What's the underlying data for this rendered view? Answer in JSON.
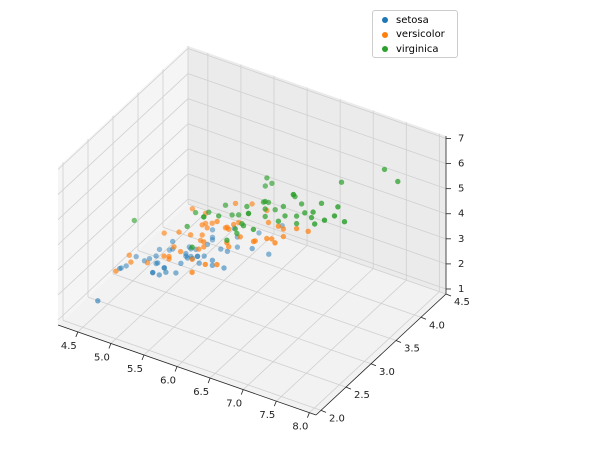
{
  "chart_data": {
    "type": "scatter",
    "title": "",
    "xlabel": "",
    "ylabel": "",
    "zlabel": "",
    "xlim": [
      4.2,
      8.1
    ],
    "ylim": [
      1.9,
      4.5
    ],
    "zlim": [
      0.8,
      7.1
    ],
    "x_ticks": [
      "4.5",
      "5.0",
      "5.5",
      "6.0",
      "6.5",
      "7.0",
      "7.5",
      "8.0"
    ],
    "y_ticks": [
      "2.0",
      "2.5",
      "3.0",
      "3.5",
      "4.0",
      "4.5"
    ],
    "z_ticks": [
      "1",
      "2",
      "3",
      "4",
      "5",
      "6",
      "7"
    ],
    "grid": true,
    "legend_position": "top-right",
    "series": [
      {
        "name": "setosa",
        "color": "#1f77b4",
        "points": [
          [
            5.1,
            3.5,
            1.4
          ],
          [
            4.9,
            3.0,
            1.4
          ],
          [
            4.7,
            3.2,
            1.3
          ],
          [
            4.6,
            3.1,
            1.5
          ],
          [
            5.0,
            3.6,
            1.4
          ],
          [
            5.4,
            3.9,
            1.7
          ],
          [
            4.6,
            3.4,
            1.4
          ],
          [
            5.0,
            3.4,
            1.5
          ],
          [
            4.4,
            2.9,
            1.4
          ],
          [
            4.9,
            3.1,
            1.5
          ],
          [
            5.4,
            3.7,
            1.5
          ],
          [
            4.8,
            3.4,
            1.6
          ],
          [
            4.8,
            3.0,
            1.4
          ],
          [
            4.3,
            3.0,
            1.1
          ],
          [
            5.8,
            4.0,
            1.2
          ],
          [
            5.7,
            4.4,
            1.5
          ],
          [
            5.4,
            3.9,
            1.3
          ],
          [
            5.1,
            3.5,
            1.4
          ],
          [
            5.7,
            3.8,
            1.7
          ],
          [
            5.1,
            3.8,
            1.5
          ],
          [
            5.4,
            3.4,
            1.7
          ],
          [
            5.1,
            3.7,
            1.5
          ],
          [
            4.6,
            3.6,
            1.0
          ],
          [
            5.1,
            3.3,
            1.7
          ],
          [
            4.8,
            3.4,
            1.9
          ],
          [
            5.0,
            3.0,
            1.6
          ],
          [
            5.0,
            3.4,
            1.6
          ],
          [
            5.2,
            3.5,
            1.5
          ],
          [
            5.2,
            3.4,
            1.4
          ],
          [
            4.7,
            3.2,
            1.6
          ],
          [
            4.8,
            3.1,
            1.6
          ],
          [
            5.4,
            3.4,
            1.5
          ],
          [
            5.2,
            4.1,
            1.5
          ],
          [
            5.5,
            4.2,
            1.4
          ],
          [
            4.9,
            3.1,
            1.5
          ],
          [
            5.0,
            3.2,
            1.2
          ],
          [
            5.5,
            3.5,
            1.3
          ],
          [
            4.9,
            3.6,
            1.4
          ],
          [
            4.4,
            3.0,
            1.3
          ],
          [
            5.1,
            3.4,
            1.5
          ],
          [
            5.0,
            3.5,
            1.3
          ],
          [
            4.5,
            2.3,
            1.3
          ],
          [
            4.4,
            3.2,
            1.3
          ],
          [
            5.0,
            3.5,
            1.6
          ],
          [
            5.1,
            3.8,
            1.9
          ],
          [
            4.8,
            3.0,
            1.4
          ],
          [
            5.1,
            3.8,
            1.6
          ],
          [
            4.6,
            3.2,
            1.4
          ],
          [
            5.3,
            3.7,
            1.5
          ],
          [
            5.0,
            3.3,
            1.4
          ]
        ]
      },
      {
        "name": "versicolor",
        "color": "#ff7f0e",
        "points": [
          [
            7.0,
            3.2,
            4.7
          ],
          [
            6.4,
            3.2,
            4.5
          ],
          [
            6.9,
            3.1,
            4.9
          ],
          [
            5.5,
            2.3,
            4.0
          ],
          [
            6.5,
            2.8,
            4.6
          ],
          [
            5.7,
            2.8,
            4.5
          ],
          [
            6.3,
            3.3,
            4.7
          ],
          [
            4.9,
            2.4,
            3.3
          ],
          [
            6.6,
            2.9,
            4.6
          ],
          [
            5.2,
            2.7,
            3.9
          ],
          [
            5.0,
            2.0,
            3.5
          ],
          [
            5.9,
            3.0,
            4.2
          ],
          [
            6.0,
            2.2,
            4.0
          ],
          [
            6.1,
            2.9,
            4.7
          ],
          [
            5.6,
            2.9,
            3.6
          ],
          [
            6.7,
            3.1,
            4.4
          ],
          [
            5.6,
            3.0,
            4.5
          ],
          [
            5.8,
            2.7,
            4.1
          ],
          [
            6.2,
            2.2,
            4.5
          ],
          [
            5.6,
            2.5,
            3.9
          ],
          [
            5.9,
            3.2,
            4.8
          ],
          [
            6.1,
            2.8,
            4.0
          ],
          [
            6.3,
            2.5,
            4.9
          ],
          [
            6.1,
            2.8,
            4.7
          ],
          [
            6.4,
            2.9,
            4.3
          ],
          [
            6.6,
            3.0,
            4.4
          ],
          [
            6.8,
            2.8,
            4.8
          ],
          [
            6.7,
            3.0,
            5.0
          ],
          [
            6.0,
            2.9,
            4.5
          ],
          [
            5.7,
            2.6,
            3.5
          ],
          [
            5.5,
            2.4,
            3.8
          ],
          [
            5.5,
            2.4,
            3.7
          ],
          [
            5.8,
            2.7,
            3.9
          ],
          [
            6.0,
            2.7,
            5.1
          ],
          [
            5.4,
            3.0,
            4.5
          ],
          [
            6.0,
            3.4,
            4.5
          ],
          [
            6.7,
            3.1,
            4.7
          ],
          [
            6.3,
            2.3,
            4.4
          ],
          [
            5.6,
            3.0,
            4.1
          ],
          [
            5.5,
            2.5,
            4.0
          ],
          [
            5.5,
            2.6,
            4.4
          ],
          [
            6.1,
            3.0,
            4.6
          ],
          [
            5.8,
            2.6,
            4.0
          ],
          [
            5.0,
            2.3,
            3.3
          ],
          [
            5.6,
            2.7,
            4.2
          ],
          [
            5.7,
            3.0,
            4.2
          ],
          [
            5.7,
            2.9,
            4.2
          ],
          [
            6.2,
            2.9,
            4.3
          ],
          [
            5.1,
            2.5,
            3.0
          ],
          [
            5.7,
            2.8,
            4.1
          ]
        ]
      },
      {
        "name": "virginica",
        "color": "#2ca02c",
        "points": [
          [
            6.3,
            3.3,
            6.0
          ],
          [
            5.8,
            2.7,
            5.1
          ],
          [
            7.1,
            3.0,
            5.9
          ],
          [
            6.3,
            2.9,
            5.6
          ],
          [
            6.5,
            3.0,
            5.8
          ],
          [
            7.6,
            3.0,
            6.6
          ],
          [
            4.9,
            2.5,
            4.5
          ],
          [
            7.3,
            2.9,
            6.3
          ],
          [
            6.7,
            2.5,
            5.8
          ],
          [
            7.2,
            3.6,
            6.1
          ],
          [
            6.5,
            3.2,
            5.1
          ],
          [
            6.4,
            2.7,
            5.3
          ],
          [
            6.8,
            3.0,
            5.5
          ],
          [
            5.7,
            2.5,
            5.0
          ],
          [
            5.8,
            2.8,
            5.1
          ],
          [
            6.4,
            3.2,
            5.3
          ],
          [
            6.5,
            3.0,
            5.5
          ],
          [
            7.7,
            3.8,
            6.7
          ],
          [
            7.7,
            2.6,
            6.9
          ],
          [
            6.0,
            2.2,
            5.0
          ],
          [
            6.9,
            3.2,
            5.7
          ],
          [
            5.6,
            2.8,
            4.9
          ],
          [
            7.7,
            2.8,
            6.7
          ],
          [
            6.3,
            2.7,
            4.9
          ],
          [
            6.7,
            3.3,
            5.7
          ],
          [
            7.2,
            3.2,
            6.0
          ],
          [
            6.2,
            2.8,
            4.8
          ],
          [
            6.1,
            3.0,
            4.9
          ],
          [
            6.4,
            2.8,
            5.6
          ],
          [
            7.2,
            3.0,
            5.8
          ],
          [
            7.4,
            2.8,
            6.1
          ],
          [
            7.9,
            3.8,
            6.4
          ],
          [
            6.4,
            2.8,
            5.6
          ],
          [
            6.3,
            2.8,
            5.1
          ],
          [
            6.1,
            2.6,
            5.6
          ],
          [
            7.7,
            3.0,
            6.1
          ],
          [
            6.3,
            3.4,
            5.6
          ],
          [
            6.4,
            3.1,
            5.5
          ],
          [
            6.0,
            3.0,
            4.8
          ],
          [
            6.9,
            3.1,
            5.4
          ],
          [
            6.7,
            3.1,
            5.6
          ],
          [
            6.9,
            3.1,
            5.1
          ],
          [
            5.8,
            2.7,
            5.1
          ],
          [
            6.8,
            3.2,
            5.9
          ],
          [
            6.7,
            3.3,
            5.7
          ],
          [
            6.7,
            3.0,
            5.2
          ],
          [
            6.3,
            2.5,
            5.0
          ],
          [
            6.5,
            3.0,
            5.2
          ],
          [
            6.2,
            3.4,
            5.4
          ],
          [
            5.9,
            3.0,
            5.1
          ]
        ]
      }
    ]
  }
}
